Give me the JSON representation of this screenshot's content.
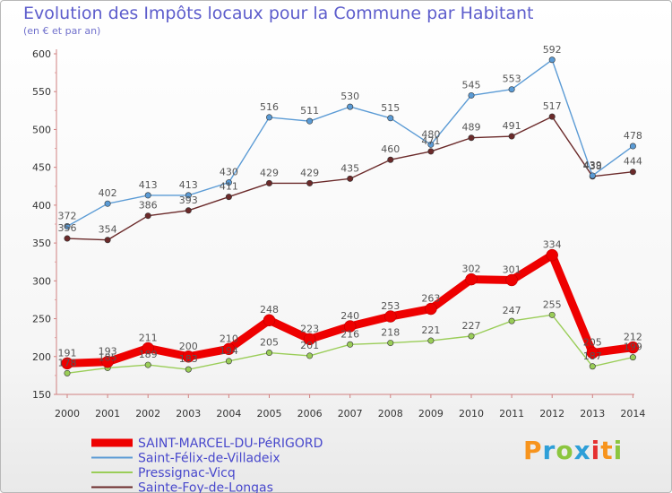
{
  "chart_data": {
    "type": "line",
    "title": "Evolution des Impôts locaux pour la Commune par Habitant",
    "subtitle": "(en € et par an)",
    "x": [
      "2000",
      "2001",
      "2002",
      "2003",
      "2004",
      "2005",
      "2006",
      "2007",
      "2008",
      "2009",
      "2010",
      "2011",
      "2012",
      "2013",
      "2014"
    ],
    "ylim": [
      150,
      600
    ],
    "yticks": [
      150,
      200,
      250,
      300,
      350,
      400,
      450,
      500,
      550,
      600
    ],
    "grid": false,
    "legend_position": "bottom-left",
    "series": [
      {
        "name": "SAINT-MARCEL-DU-PéRIGORD",
        "color": "#ee0000",
        "values": [
          191,
          193,
          211,
          200,
          210,
          248,
          223,
          240,
          253,
          263,
          302,
          301,
          334,
          205,
          212
        ]
      },
      {
        "name": "Saint-Félix-de-Villadeix",
        "color": "#5b9bd5",
        "values": [
          372,
          402,
          413,
          413,
          430,
          516,
          511,
          530,
          515,
          480,
          545,
          553,
          592,
          439,
          478
        ]
      },
      {
        "name": "Pressignac-Vicq",
        "color": "#9acd58",
        "values": [
          178,
          185,
          189,
          183,
          194,
          205,
          201,
          216,
          218,
          221,
          227,
          247,
          255,
          187,
          199
        ]
      },
      {
        "name": "Sainte-Foy-de-Longas",
        "color": "#6b2a2a",
        "values": [
          356,
          354,
          386,
          393,
          411,
          429,
          429,
          435,
          460,
          471,
          489,
          491,
          517,
          438,
          444
        ]
      }
    ]
  },
  "logo": {
    "text": "Proxiti",
    "colors": [
      "#f7941d",
      "#2e9fd8",
      "#8cc63f",
      "#2e9fd8",
      "#e53030",
      "#f7941d",
      "#8cc63f"
    ]
  }
}
